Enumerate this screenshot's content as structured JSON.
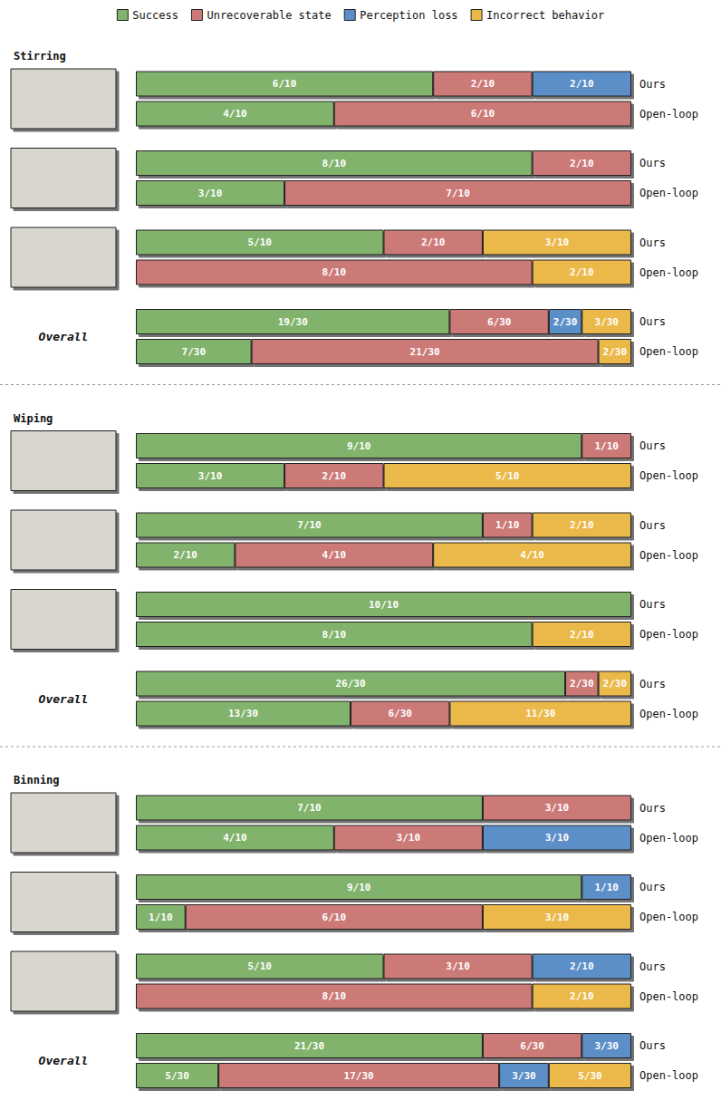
{
  "chart_data": [
    {
      "type": "bar",
      "orientation": "horizontal",
      "stacked": true,
      "data_labels": true,
      "tick_labels": "y",
      "grid": false,
      "legend": "top",
      "title": "Stirring",
      "categories": [
        "Ours",
        "Open-loop"
      ],
      "xlim": [
        0,
        10
      ],
      "series": [
        {
          "name": "Success",
          "color": "#82b36c",
          "values": [
            6,
            4
          ],
          "value_labels": [
            "6/10",
            "4/10"
          ]
        },
        {
          "name": "Unrecoverable state",
          "color": "#cc7a78",
          "values": [
            2,
            6
          ],
          "value_labels": [
            "2/10",
            "6/10"
          ]
        },
        {
          "name": "Perception loss",
          "color": "#5b8ec8",
          "values": [
            2,
            null
          ],
          "value_labels": [
            "2/10",
            null
          ]
        },
        {
          "name": "Incorrect behavior",
          "color": "#ebb94a",
          "values": [
            null,
            null
          ],
          "value_labels": [
            null,
            null
          ]
        }
      ]
    },
    {
      "type": "bar",
      "orientation": "horizontal",
      "stacked": true,
      "data_labels": true,
      "tick_labels": "y",
      "grid": false,
      "categories": [
        "Ours",
        "Open-loop"
      ],
      "xlim": [
        0,
        10
      ],
      "series": [
        {
          "name": "Success",
          "color": "#82b36c",
          "values": [
            8,
            3
          ],
          "value_labels": [
            "8/10",
            "3/10"
          ]
        },
        {
          "name": "Unrecoverable state",
          "color": "#cc7a78",
          "values": [
            2,
            7
          ],
          "value_labels": [
            "2/10",
            "7/10"
          ]
        },
        {
          "name": "Perception loss",
          "color": "#5b8ec8",
          "values": [
            null,
            null
          ],
          "value_labels": [
            null,
            null
          ]
        },
        {
          "name": "Incorrect behavior",
          "color": "#ebb94a",
          "values": [
            null,
            null
          ],
          "value_labels": [
            null,
            null
          ]
        }
      ]
    },
    {
      "type": "bar",
      "orientation": "horizontal",
      "stacked": true,
      "data_labels": true,
      "tick_labels": "y",
      "grid": false,
      "categories": [
        "Ours",
        "Open-loop"
      ],
      "xlim": [
        0,
        10
      ],
      "series": [
        {
          "name": "Success",
          "color": "#82b36c",
          "values": [
            5,
            null
          ],
          "value_labels": [
            "5/10",
            null
          ]
        },
        {
          "name": "Unrecoverable state",
          "color": "#cc7a78",
          "values": [
            2,
            8
          ],
          "value_labels": [
            "2/10",
            "8/10"
          ]
        },
        {
          "name": "Perception loss",
          "color": "#5b8ec8",
          "values": [
            null,
            null
          ],
          "value_labels": [
            null,
            null
          ]
        },
        {
          "name": "Incorrect behavior",
          "color": "#ebb94a",
          "values": [
            3,
            2
          ],
          "value_labels": [
            "3/10",
            "2/10"
          ]
        }
      ]
    },
    {
      "type": "bar",
      "orientation": "horizontal",
      "stacked": true,
      "data_labels": true,
      "tick_labels": "y",
      "grid": false,
      "annotations": [
        "Overall"
      ],
      "categories": [
        "Ours",
        "Open-loop"
      ],
      "xlim": [
        0,
        30
      ],
      "series": [
        {
          "name": "Success",
          "color": "#82b36c",
          "values": [
            19,
            7
          ],
          "value_labels": [
            "19/30",
            "7/30"
          ]
        },
        {
          "name": "Unrecoverable state",
          "color": "#cc7a78",
          "values": [
            6,
            21
          ],
          "value_labels": [
            "6/30",
            "21/30"
          ]
        },
        {
          "name": "Perception loss",
          "color": "#5b8ec8",
          "values": [
            2,
            null
          ],
          "value_labels": [
            "2/30",
            null
          ]
        },
        {
          "name": "Incorrect behavior",
          "color": "#ebb94a",
          "values": [
            3,
            2
          ],
          "value_labels": [
            "3/30",
            "2/30"
          ]
        }
      ]
    },
    {
      "type": "bar",
      "orientation": "horizontal",
      "stacked": true,
      "data_labels": true,
      "tick_labels": "y",
      "grid": false,
      "title": "Wiping",
      "categories": [
        "Ours",
        "Open-loop"
      ],
      "xlim": [
        0,
        10
      ],
      "series": [
        {
          "name": "Success",
          "color": "#82b36c",
          "values": [
            9,
            3
          ],
          "value_labels": [
            "9/10",
            "3/10"
          ]
        },
        {
          "name": "Unrecoverable state",
          "color": "#cc7a78",
          "values": [
            1,
            2
          ],
          "value_labels": [
            "1/10",
            "2/10"
          ]
        },
        {
          "name": "Perception loss",
          "color": "#5b8ec8",
          "values": [
            null,
            null
          ],
          "value_labels": [
            null,
            null
          ]
        },
        {
          "name": "Incorrect behavior",
          "color": "#ebb94a",
          "values": [
            null,
            5
          ],
          "value_labels": [
            null,
            "5/10"
          ]
        }
      ]
    },
    {
      "type": "bar",
      "orientation": "horizontal",
      "stacked": true,
      "data_labels": true,
      "tick_labels": "y",
      "grid": false,
      "categories": [
        "Ours",
        "Open-loop"
      ],
      "xlim": [
        0,
        10
      ],
      "series": [
        {
          "name": "Success",
          "color": "#82b36c",
          "values": [
            7,
            2
          ],
          "value_labels": [
            "7/10",
            "2/10"
          ]
        },
        {
          "name": "Unrecoverable state",
          "color": "#cc7a78",
          "values": [
            1,
            4
          ],
          "value_labels": [
            "1/10",
            "4/10"
          ]
        },
        {
          "name": "Perception loss",
          "color": "#5b8ec8",
          "values": [
            null,
            null
          ],
          "value_labels": [
            null,
            null
          ]
        },
        {
          "name": "Incorrect behavior",
          "color": "#ebb94a",
          "values": [
            2,
            4
          ],
          "value_labels": [
            "2/10",
            "4/10"
          ]
        }
      ]
    },
    {
      "type": "bar",
      "orientation": "horizontal",
      "stacked": true,
      "data_labels": true,
      "tick_labels": "y",
      "grid": false,
      "categories": [
        "Ours",
        "Open-loop"
      ],
      "xlim": [
        0,
        10
      ],
      "series": [
        {
          "name": "Success",
          "color": "#82b36c",
          "values": [
            10,
            8
          ],
          "value_labels": [
            "10/10",
            "8/10"
          ]
        },
        {
          "name": "Unrecoverable state",
          "color": "#cc7a78",
          "values": [
            null,
            null
          ],
          "value_labels": [
            null,
            null
          ]
        },
        {
          "name": "Perception loss",
          "color": "#5b8ec8",
          "values": [
            null,
            null
          ],
          "value_labels": [
            null,
            null
          ]
        },
        {
          "name": "Incorrect behavior",
          "color": "#ebb94a",
          "values": [
            null,
            2
          ],
          "value_labels": [
            null,
            "2/10"
          ]
        }
      ]
    },
    {
      "type": "bar",
      "orientation": "horizontal",
      "stacked": true,
      "data_labels": true,
      "tick_labels": "y",
      "grid": false,
      "annotations": [
        "Overall"
      ],
      "categories": [
        "Ours",
        "Open-loop"
      ],
      "xlim": [
        0,
        30
      ],
      "series": [
        {
          "name": "Success",
          "color": "#82b36c",
          "values": [
            26,
            13
          ],
          "value_labels": [
            "26/30",
            "13/30"
          ]
        },
        {
          "name": "Unrecoverable state",
          "color": "#cc7a78",
          "values": [
            2,
            6
          ],
          "value_labels": [
            "2/30",
            "6/30"
          ]
        },
        {
          "name": "Perception loss",
          "color": "#5b8ec8",
          "values": [
            null,
            null
          ],
          "value_labels": [
            null,
            null
          ]
        },
        {
          "name": "Incorrect behavior",
          "color": "#ebb94a",
          "values": [
            2,
            11
          ],
          "value_labels": [
            "2/30",
            "11/30"
          ]
        }
      ]
    },
    {
      "type": "bar",
      "orientation": "horizontal",
      "stacked": true,
      "data_labels": true,
      "tick_labels": "y",
      "grid": false,
      "title": "Binning",
      "categories": [
        "Ours",
        "Open-loop"
      ],
      "xlim": [
        0,
        10
      ],
      "series": [
        {
          "name": "Success",
          "color": "#82b36c",
          "values": [
            7,
            4
          ],
          "value_labels": [
            "7/10",
            "4/10"
          ]
        },
        {
          "name": "Unrecoverable state",
          "color": "#cc7a78",
          "values": [
            3,
            3
          ],
          "value_labels": [
            "3/10",
            "3/10"
          ]
        },
        {
          "name": "Perception loss",
          "color": "#5b8ec8",
          "values": [
            null,
            3
          ],
          "value_labels": [
            null,
            "3/10"
          ]
        },
        {
          "name": "Incorrect behavior",
          "color": "#ebb94a",
          "values": [
            null,
            null
          ],
          "value_labels": [
            null,
            null
          ]
        }
      ]
    },
    {
      "type": "bar",
      "orientation": "horizontal",
      "stacked": true,
      "data_labels": true,
      "tick_labels": "y",
      "grid": false,
      "categories": [
        "Ours",
        "Open-loop"
      ],
      "xlim": [
        0,
        10
      ],
      "series": [
        {
          "name": "Success",
          "color": "#82b36c",
          "values": [
            9,
            1
          ],
          "value_labels": [
            "9/10",
            "1/10"
          ]
        },
        {
          "name": "Unrecoverable state",
          "color": "#cc7a78",
          "values": [
            null,
            6
          ],
          "value_labels": [
            null,
            "6/10"
          ]
        },
        {
          "name": "Perception loss",
          "color": "#5b8ec8",
          "values": [
            1,
            null
          ],
          "value_labels": [
            "1/10",
            null
          ]
        },
        {
          "name": "Incorrect behavior",
          "color": "#ebb94a",
          "values": [
            null,
            3
          ],
          "value_labels": [
            null,
            "3/10"
          ]
        }
      ]
    },
    {
      "type": "bar",
      "orientation": "horizontal",
      "stacked": true,
      "data_labels": true,
      "tick_labels": "y",
      "grid": false,
      "categories": [
        "Ours",
        "Open-loop"
      ],
      "xlim": [
        0,
        10
      ],
      "series": [
        {
          "name": "Success",
          "color": "#82b36c",
          "values": [
            5,
            null
          ],
          "value_labels": [
            "5/10",
            null
          ]
        },
        {
          "name": "Unrecoverable state",
          "color": "#cc7a78",
          "values": [
            3,
            8
          ],
          "value_labels": [
            "3/10",
            "8/10"
          ]
        },
        {
          "name": "Perception loss",
          "color": "#5b8ec8",
          "values": [
            2,
            null
          ],
          "value_labels": [
            "2/10",
            null
          ]
        },
        {
          "name": "Incorrect behavior",
          "color": "#ebb94a",
          "values": [
            null,
            2
          ],
          "value_labels": [
            null,
            "2/10"
          ]
        }
      ]
    },
    {
      "type": "bar",
      "orientation": "horizontal",
      "stacked": true,
      "data_labels": true,
      "tick_labels": "y",
      "grid": false,
      "annotations": [
        "Overall"
      ],
      "categories": [
        "Ours",
        "Open-loop"
      ],
      "xlim": [
        0,
        30
      ],
      "series": [
        {
          "name": "Success",
          "color": "#82b36c",
          "values": [
            21,
            5
          ],
          "value_labels": [
            "21/30",
            "5/30"
          ]
        },
        {
          "name": "Unrecoverable state",
          "color": "#cc7a78",
          "values": [
            6,
            17
          ],
          "value_labels": [
            "6/30",
            "17/30"
          ]
        },
        {
          "name": "Perception loss",
          "color": "#5b8ec8",
          "values": [
            3,
            3
          ],
          "value_labels": [
            "3/30",
            "3/30"
          ]
        },
        {
          "name": "Incorrect behavior",
          "color": "#ebb94a",
          "values": [
            null,
            5
          ],
          "value_labels": [
            null,
            "5/30"
          ]
        }
      ]
    }
  ]
}
